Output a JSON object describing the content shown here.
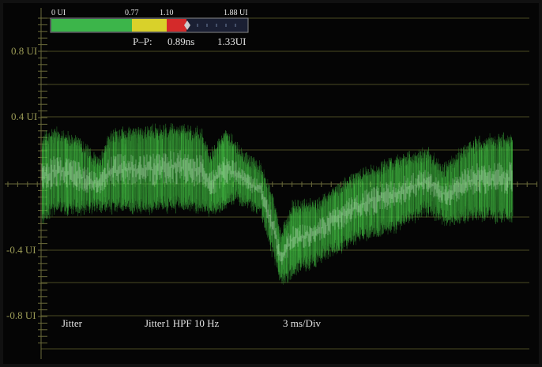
{
  "meter": {
    "scale": {
      "start": "0 UI",
      "warn": "0.77",
      "alarm": "1.10",
      "end": "1.88 UI"
    },
    "readout": {
      "label": "P–P:",
      "time": "0.89ns",
      "ui": "1.33UI"
    }
  },
  "axis": {
    "labels": [
      "0.8 UI",
      "0.4 UI",
      "-0.4 UI",
      "-0.8 UI"
    ]
  },
  "status": {
    "mode": "Jitter",
    "filter": "Jitter1 HPF 10 Hz",
    "timebase": "3 ms/Div"
  }
}
